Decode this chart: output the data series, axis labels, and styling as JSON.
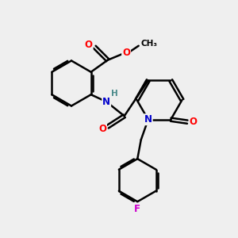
{
  "background_color": "#efefef",
  "bond_color": "#000000",
  "bond_width": 1.8,
  "atom_colors": {
    "O": "#ff0000",
    "N": "#0000cc",
    "F": "#cc00cc",
    "C": "#000000",
    "H": "#4a8a8a"
  },
  "font_size": 8.5,
  "fig_size": [
    3.0,
    3.0
  ],
  "dpi": 100,
  "xlim": [
    0,
    10
  ],
  "ylim": [
    0,
    10
  ]
}
